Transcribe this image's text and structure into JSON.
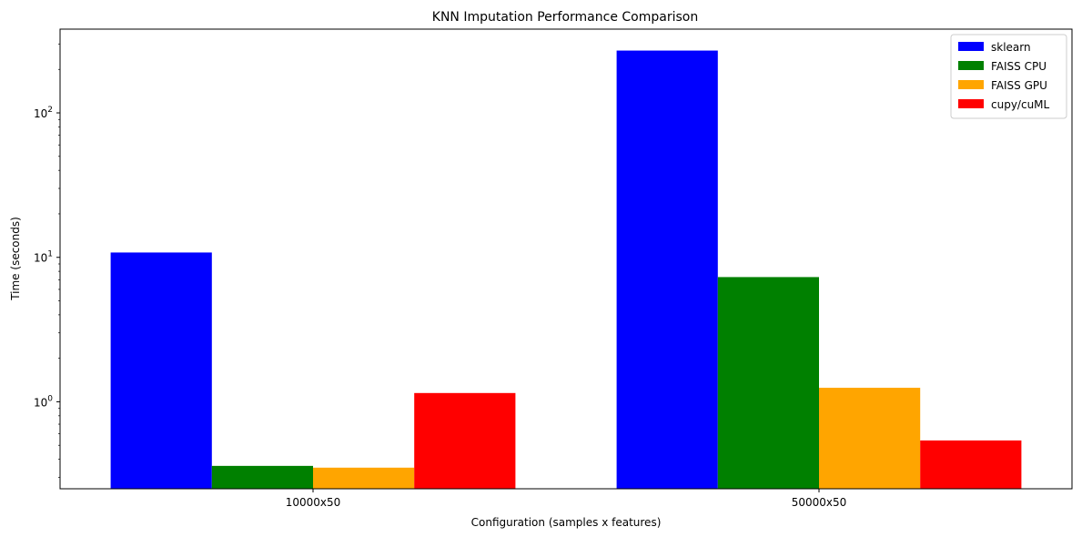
{
  "chart_data": {
    "type": "bar",
    "title": "KNN Imputation Performance Comparison",
    "xlabel": "Configuration (samples x features)",
    "ylabel": "Time (seconds)",
    "yscale": "log",
    "ylim": [
      0.25,
      380
    ],
    "yticks": [
      {
        "value": 1,
        "base": "10",
        "exp": "0"
      },
      {
        "value": 10,
        "base": "10",
        "exp": "1"
      },
      {
        "value": 100,
        "base": "10",
        "exp": "2"
      }
    ],
    "categories": [
      "10000x50",
      "50000x50"
    ],
    "series": [
      {
        "name": "sklearn",
        "color": "#0000ff",
        "values": [
          10.8,
          270
        ]
      },
      {
        "name": "FAISS CPU",
        "color": "#008000",
        "values": [
          0.36,
          7.3
        ]
      },
      {
        "name": "FAISS GPU",
        "color": "#ffa500",
        "values": [
          0.35,
          1.25
        ]
      },
      {
        "name": "cupy/cuML",
        "color": "#ff0000",
        "values": [
          1.15,
          0.54
        ]
      }
    ],
    "legend_position": "top-right",
    "grid": false
  }
}
